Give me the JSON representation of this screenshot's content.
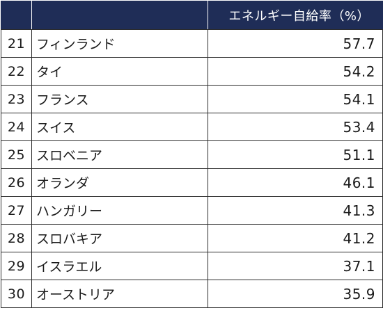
{
  "table": {
    "header": {
      "rank": "",
      "country": "",
      "value": "エネルギー自給率（%）"
    },
    "rows": [
      {
        "rank": "21",
        "country": "フィンランド",
        "value": "57.7"
      },
      {
        "rank": "22",
        "country": "タイ",
        "value": "54.2"
      },
      {
        "rank": "23",
        "country": "フランス",
        "value": "54.1"
      },
      {
        "rank": "24",
        "country": "スイス",
        "value": "53.4"
      },
      {
        "rank": "25",
        "country": "スロベニア",
        "value": "51.1"
      },
      {
        "rank": "26",
        "country": "オランダ",
        "value": "46.1"
      },
      {
        "rank": "27",
        "country": "ハンガリー",
        "value": "41.3"
      },
      {
        "rank": "28",
        "country": "スロバキア",
        "value": "41.2"
      },
      {
        "rank": "29",
        "country": "イスラエル",
        "value": "37.1"
      },
      {
        "rank": "30",
        "country": "オーストリア",
        "value": "35.9"
      }
    ]
  },
  "colors": {
    "header_background": "#1f2d57",
    "header_text": "#ffffff",
    "border": "#2b2b2b"
  }
}
